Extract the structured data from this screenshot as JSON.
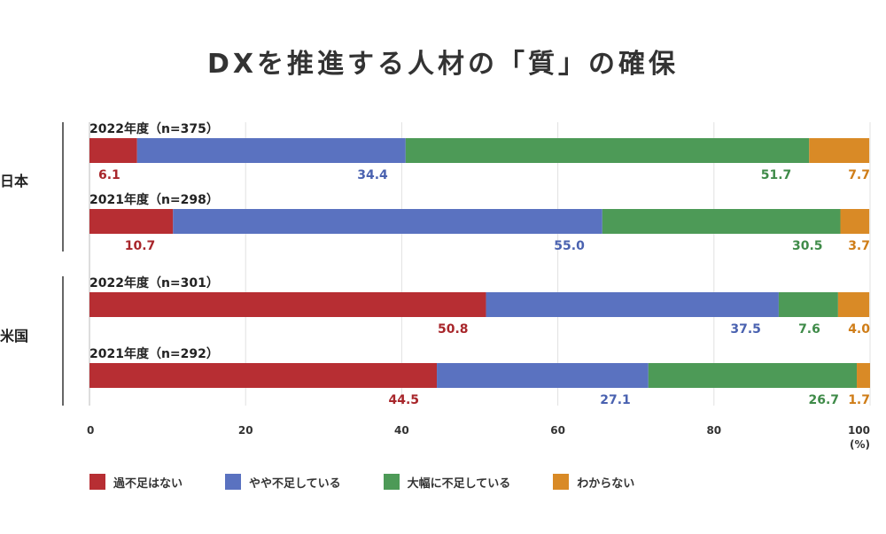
{
  "chart_data": {
    "type": "bar",
    "orientation": "horizontal",
    "stacked": true,
    "title": "DXを推進する人材の「質」の確保",
    "unit": "(%)",
    "xlim": [
      0,
      100
    ],
    "x_ticks": [
      0,
      20,
      40,
      60,
      80,
      100
    ],
    "grid": true,
    "legend_position": "bottom-left",
    "segment_labels": [
      "過不足はない",
      "やや不足している",
      "大幅に不足している",
      "わからない"
    ],
    "segment_colors": [
      "#b72e33",
      "#5a72c0",
      "#4d9a57",
      "#d98a26"
    ],
    "label_colors": [
      "#a8262b",
      "#4a62b0",
      "#3f8b49",
      "#cf7d18"
    ],
    "groups": [
      {
        "name": "日本",
        "bars": [
          {
            "label": "2022年度（n=375）",
            "values": [
              6.1,
              34.4,
              51.7,
              7.7
            ]
          },
          {
            "label": "2021年度（n=298）",
            "values": [
              10.7,
              55.0,
              30.5,
              3.7
            ]
          }
        ]
      },
      {
        "name": "米国",
        "bars": [
          {
            "label": "2022年度（n=301）",
            "values": [
              50.8,
              37.5,
              7.6,
              4.0
            ]
          },
          {
            "label": "2021年度（n=292）",
            "values": [
              44.5,
              27.1,
              26.7,
              1.7
            ]
          }
        ]
      }
    ]
  }
}
